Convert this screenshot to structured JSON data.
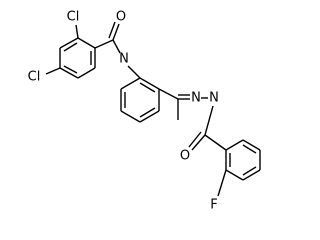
{
  "atoms": [
    {
      "label": "Cl"
    },
    {
      "label": "O"
    },
    {
      "label": "N"
    },
    {
      "label": "Cl"
    },
    {
      "label": "N"
    },
    {
      "label": "N"
    },
    {
      "label": "O"
    },
    {
      "label": "F"
    }
  ]
}
